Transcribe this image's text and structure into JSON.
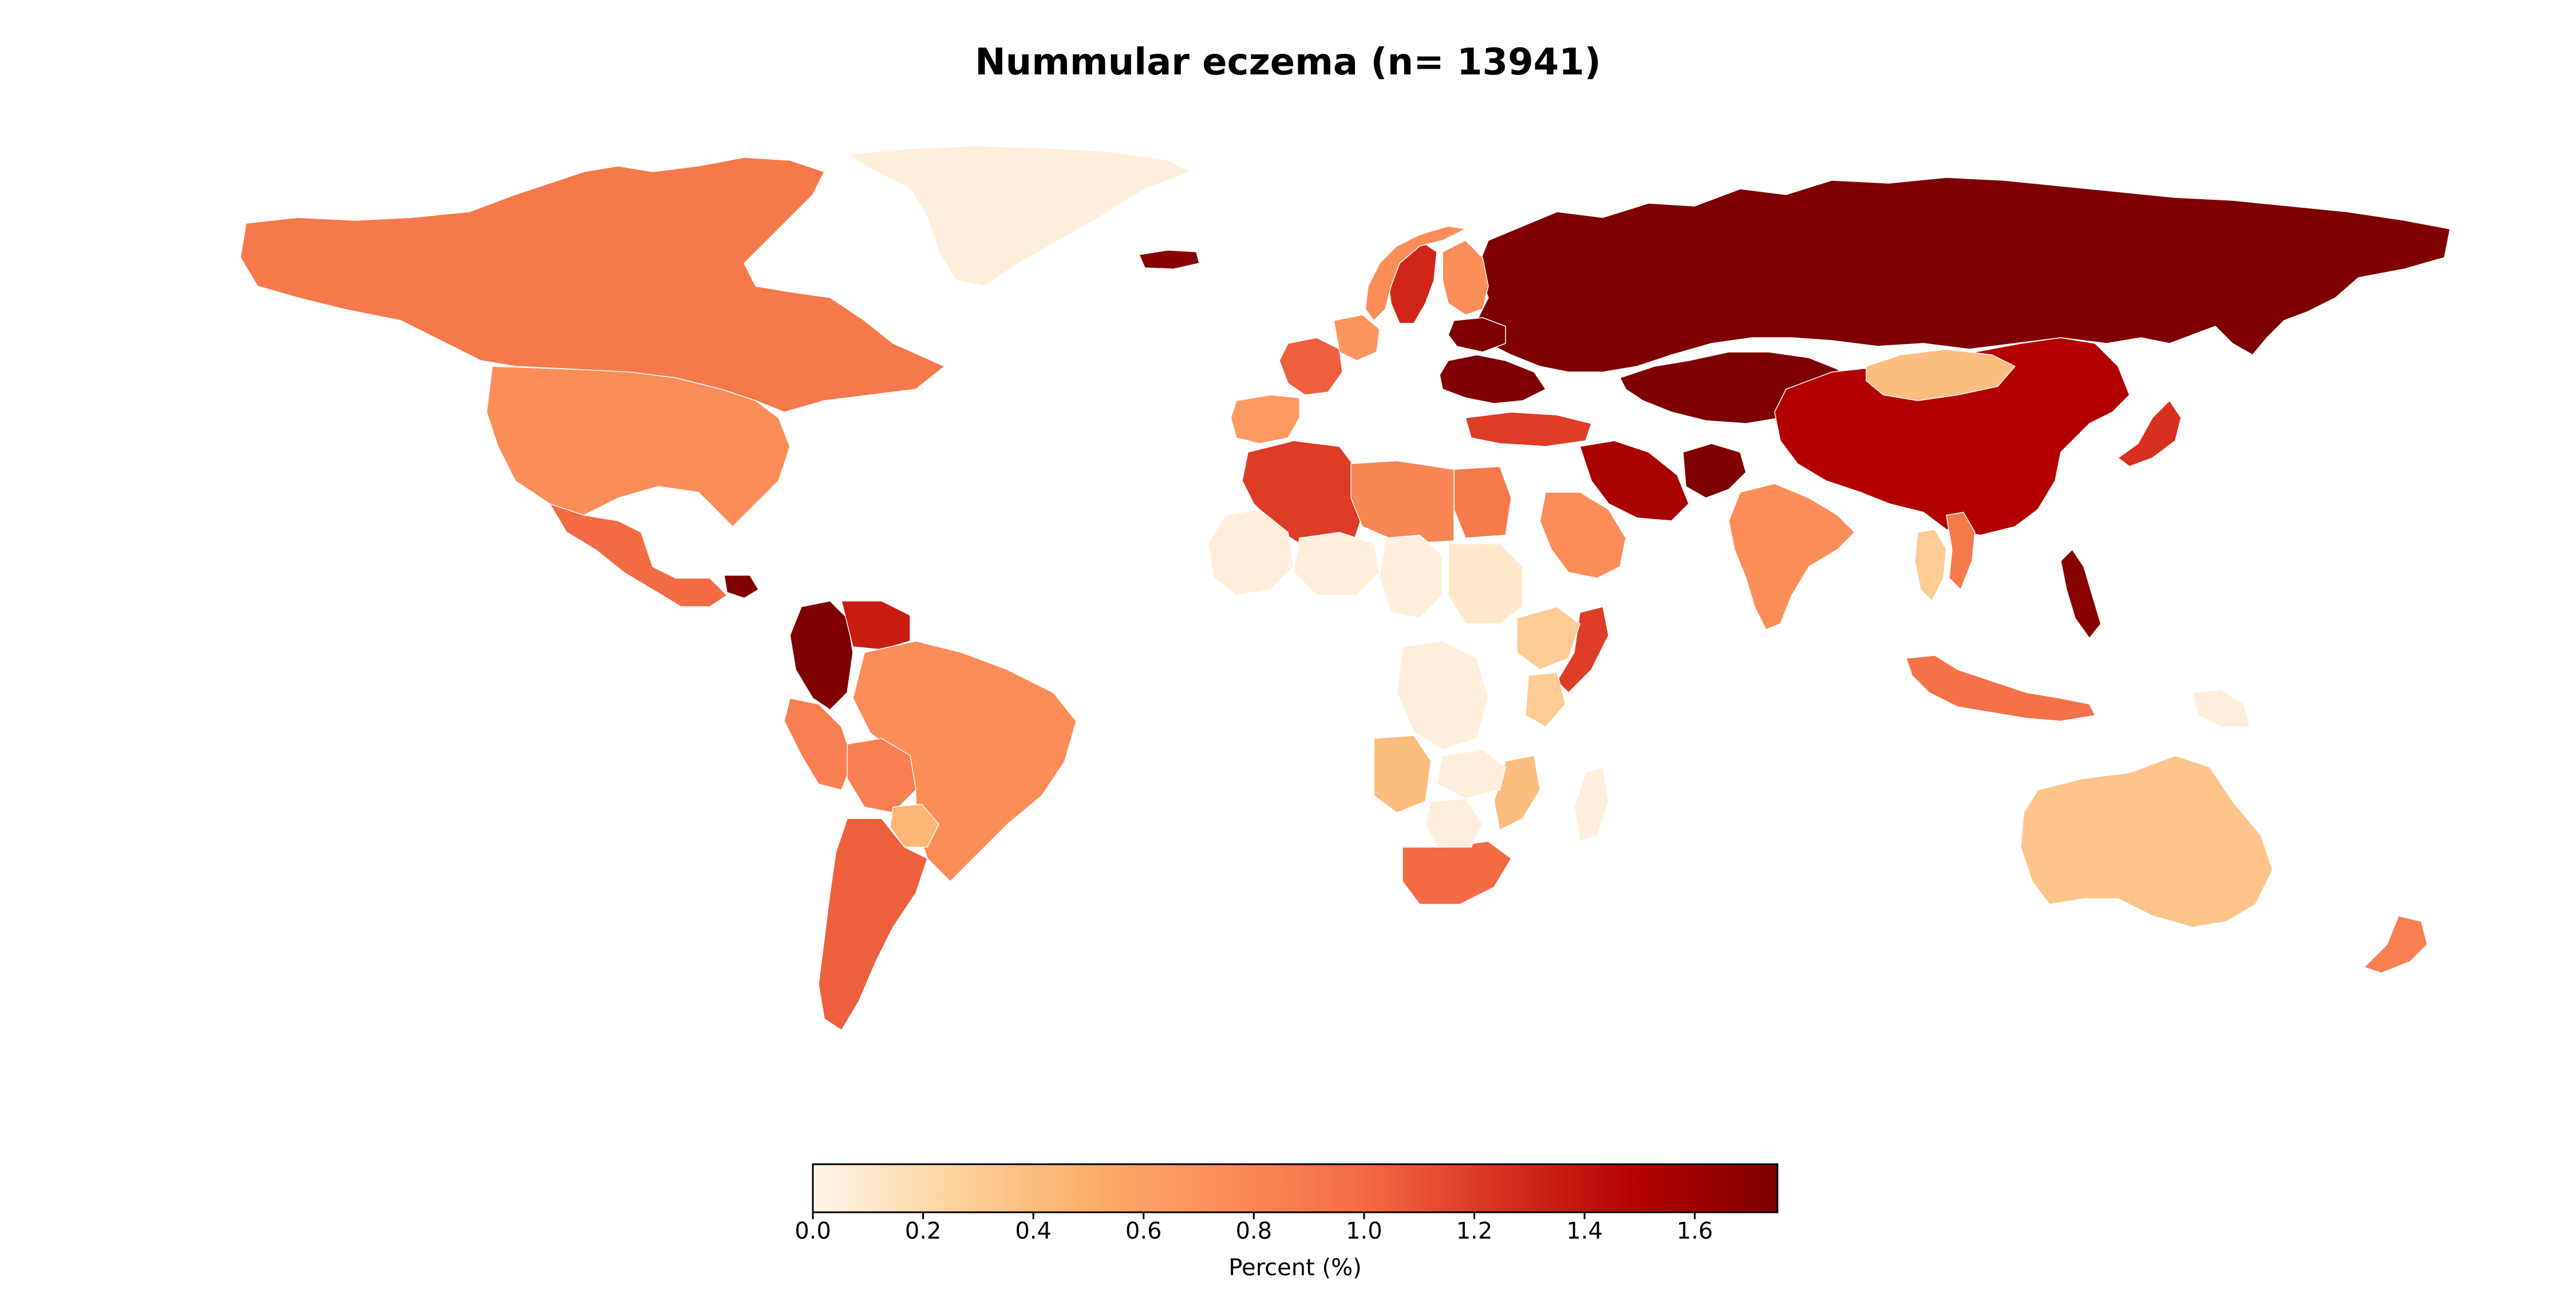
{
  "title": "Nummular eczema (n= 13941)",
  "colorbar": {
    "label": "Percent (%)",
    "min": 0.0,
    "max": 1.75,
    "ticks": [
      "0.0",
      "0.2",
      "0.4",
      "0.6",
      "0.8",
      "1.0",
      "1.2",
      "1.4",
      "1.6"
    ],
    "colors": [
      "#fff5eb",
      "#fdd49e",
      "#fdae6b",
      "#fb8d59",
      "#f36b44",
      "#d7301f",
      "#b30000",
      "#7f0000"
    ]
  },
  "map_data": {
    "type": "choropleth",
    "metric": "percent",
    "regions": [
      {
        "name": "Russia",
        "value": 1.75
      },
      {
        "name": "Kazakhstan",
        "value": 1.75
      },
      {
        "name": "Ukraine",
        "value": 1.75
      },
      {
        "name": "Belarus",
        "value": 1.75
      },
      {
        "name": "Afghanistan",
        "value": 1.75
      },
      {
        "name": "Colombia",
        "value": 1.75
      },
      {
        "name": "Guatemala",
        "value": 1.75
      },
      {
        "name": "Philippines",
        "value": 1.7
      },
      {
        "name": "Iceland",
        "value": 1.7
      },
      {
        "name": "China",
        "value": 1.5
      },
      {
        "name": "Iran",
        "value": 1.55
      },
      {
        "name": "Venezuela",
        "value": 1.35
      },
      {
        "name": "Sweden",
        "value": 1.3
      },
      {
        "name": "Japan",
        "value": 1.25
      },
      {
        "name": "Algeria",
        "value": 1.2
      },
      {
        "name": "Turkey",
        "value": 1.2
      },
      {
        "name": "Somalia",
        "value": 1.2
      },
      {
        "name": "France",
        "value": 1.05
      },
      {
        "name": "Argentina",
        "value": 1.05
      },
      {
        "name": "Mexico",
        "value": 1.0
      },
      {
        "name": "South Africa",
        "value": 1.0
      },
      {
        "name": "Indonesia",
        "value": 0.95
      },
      {
        "name": "Canada",
        "value": 0.9
      },
      {
        "name": "Egypt",
        "value": 0.9
      },
      {
        "name": "Vietnam",
        "value": 0.9
      },
      {
        "name": "Peru",
        "value": 0.85
      },
      {
        "name": "New Zealand",
        "value": 0.85
      },
      {
        "name": "United States",
        "value": 0.75
      },
      {
        "name": "Brazil",
        "value": 0.75
      },
      {
        "name": "India",
        "value": 0.75
      },
      {
        "name": "Saudi Arabia",
        "value": 0.75
      },
      {
        "name": "Libya",
        "value": 0.8
      },
      {
        "name": "Norway",
        "value": 0.75
      },
      {
        "name": "Finland",
        "value": 0.75
      },
      {
        "name": "Bolivia",
        "value": 0.85
      },
      {
        "name": "Spain",
        "value": 0.65
      },
      {
        "name": "Germany",
        "value": 0.7
      },
      {
        "name": "Paraguay",
        "value": 0.45
      },
      {
        "name": "Australia",
        "value": 0.35
      },
      {
        "name": "Mongolia",
        "value": 0.4
      },
      {
        "name": "Ethiopia",
        "value": 0.3
      },
      {
        "name": "Kenya",
        "value": 0.3
      },
      {
        "name": "Angola",
        "value": 0.4
      },
      {
        "name": "Mozambique",
        "value": 0.4
      },
      {
        "name": "Thailand",
        "value": 0.3
      },
      {
        "name": "Greenland",
        "value": 0.05
      },
      {
        "name": "Mali",
        "value": 0.05
      },
      {
        "name": "Niger",
        "value": 0.05
      },
      {
        "name": "Chad",
        "value": 0.05
      },
      {
        "name": "Sudan",
        "value": 0.1
      },
      {
        "name": "DR Congo",
        "value": 0.05
      },
      {
        "name": "Zambia",
        "value": 0.05
      },
      {
        "name": "Botswana",
        "value": 0.05
      },
      {
        "name": "Madagascar",
        "value": 0.05
      },
      {
        "name": "Papua New Guinea",
        "value": 0.05
      }
    ]
  }
}
